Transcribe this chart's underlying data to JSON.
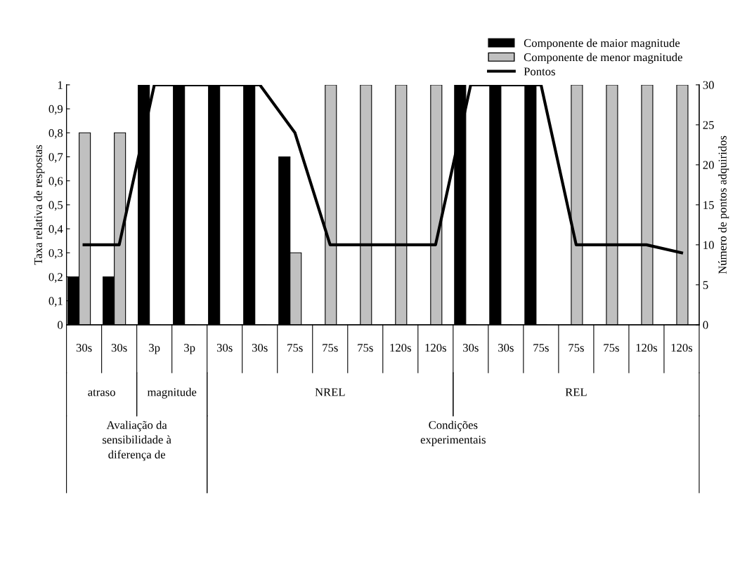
{
  "chart_data": {
    "type": "bar",
    "categories": [
      "30s",
      "30s",
      "3p",
      "3p",
      "30s",
      "30s",
      "75s",
      "75s",
      "75s",
      "120s",
      "120s",
      "30s",
      "30s",
      "75s",
      "75s",
      "75s",
      "120s",
      "120s"
    ],
    "series": [
      {
        "name": "Componente de maior magnitude",
        "color": "#000000",
        "values": [
          0.2,
          0.2,
          1,
          1,
          1,
          1,
          0.7,
          0,
          0,
          0,
          0,
          1,
          1,
          1,
          0,
          0,
          0,
          0
        ]
      },
      {
        "name": "Componente de menor magnitude",
        "color": "#c0c0c0",
        "values": [
          0.8,
          0.8,
          0,
          0,
          0,
          0,
          0.3,
          1,
          1,
          1,
          1,
          0,
          0,
          0,
          1,
          1,
          1,
          1
        ]
      },
      {
        "name": "Pontos",
        "type": "line",
        "axis": "y2",
        "color": "#000000",
        "values": [
          10,
          10,
          30,
          30,
          30,
          30,
          24,
          10,
          10,
          10,
          10,
          30,
          30,
          30,
          10,
          10,
          10,
          9
        ]
      }
    ],
    "ylabel": "Taxa relativa de respostas",
    "y2label": "Número de pontos adquiridos",
    "ylim": [
      0,
      1
    ],
    "yticks": [
      0,
      {
        "value": 0.1,
        "label": "0,1"
      },
      {
        "value": 0.2,
        "label": "0,2"
      },
      {
        "value": 0.3,
        "label": "0,3"
      },
      {
        "value": 0.4,
        "label": "0,4"
      },
      {
        "value": 0.5,
        "label": "0,5"
      },
      {
        "value": 0.6,
        "label": "0,6"
      },
      {
        "value": 0.7,
        "label": "0,7"
      },
      {
        "value": 0.8,
        "label": "0,8"
      },
      {
        "value": 0.9,
        "label": "0,9"
      },
      1
    ],
    "y2lim": [
      0,
      30
    ],
    "y2ticks": [
      0,
      5,
      10,
      15,
      20,
      25,
      30
    ],
    "annotations": [
      "atraso",
      "magnitude",
      "NREL",
      "REL",
      "Avaliação da sensibilidade à diferença de",
      "Condições experimentais"
    ],
    "legend": "top right",
    "grid": false,
    "marker": "none",
    "line_style": "solid"
  }
}
